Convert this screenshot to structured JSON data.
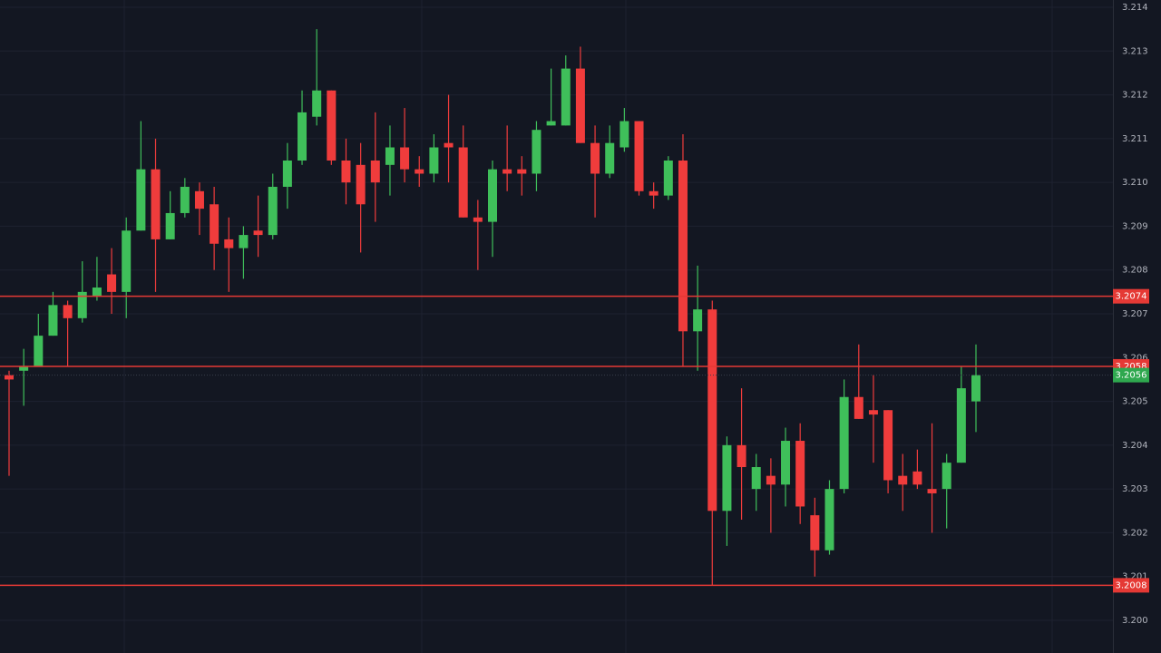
{
  "chart_data": {
    "type": "candlestick",
    "up_color": "#3fbf5a",
    "down_color": "#f03c3c",
    "ylim": [
      3.2,
      3.214
    ],
    "yticks": [
      3.214,
      3.213,
      3.212,
      3.211,
      {
        "value": 3.21,
        "label": "3.210"
      },
      3.209,
      3.208,
      3.207,
      3.206,
      3.205,
      3.204,
      3.203,
      3.202,
      3.201,
      {
        "value": 3.2,
        "label": "3.200"
      }
    ],
    "grid": true,
    "open": [
      3.2056,
      3.2057,
      3.2058,
      3.2065,
      3.2072,
      3.2069,
      3.2074,
      3.2079,
      3.2075,
      3.2089,
      3.2103,
      3.2087,
      3.2093,
      3.2098,
      3.2095,
      3.2087,
      3.2085,
      3.2089,
      3.2088,
      3.2099,
      3.2105,
      3.2115,
      3.2121,
      3.2105,
      3.2104,
      3.2105,
      3.2104,
      3.2108,
      3.2103,
      3.2102,
      3.2109,
      3.2108,
      3.2092,
      3.2091,
      3.2103,
      3.2103,
      3.2102,
      3.2113,
      3.2113,
      3.2126,
      3.2109,
      3.2102,
      3.2108,
      3.2114,
      3.2098,
      3.2097,
      3.2105,
      3.2066,
      3.2071,
      3.2025,
      3.204,
      3.203,
      3.2033,
      3.2031,
      3.2041,
      3.2024,
      3.2016,
      3.203,
      3.2051,
      3.2048,
      3.2048,
      3.2033,
      3.2034,
      3.203,
      3.203,
      3.2036,
      3.205
    ],
    "high": [
      3.2057,
      3.2062,
      3.207,
      3.2075,
      3.2073,
      3.2082,
      3.2083,
      3.2085,
      3.2092,
      3.2114,
      3.211,
      3.2098,
      3.2101,
      3.21,
      3.2099,
      3.2092,
      3.209,
      3.2097,
      3.2102,
      3.2109,
      3.2121,
      3.2135,
      3.2121,
      3.211,
      3.2109,
      3.2116,
      3.2113,
      3.2117,
      3.2106,
      3.2111,
      3.212,
      3.2113,
      3.2096,
      3.2105,
      3.2113,
      3.2106,
      3.2114,
      3.2126,
      3.2129,
      3.2131,
      3.2113,
      3.2113,
      3.2117,
      3.2114,
      3.21,
      3.2106,
      3.2111,
      3.2081,
      3.2073,
      3.2042,
      3.2053,
      3.2038,
      3.2037,
      3.2044,
      3.2045,
      3.2028,
      3.2032,
      3.2055,
      3.2063,
      3.2056,
      3.2048,
      3.2038,
      3.2039,
      3.2045,
      3.2038,
      3.2058,
      3.2063
    ],
    "low": [
      3.2033,
      3.2049,
      3.2058,
      3.2065,
      3.2058,
      3.2068,
      3.2073,
      3.207,
      3.2069,
      3.2089,
      3.2075,
      3.2087,
      3.2092,
      3.2088,
      3.208,
      3.2075,
      3.2078,
      3.2083,
      3.2087,
      3.2094,
      3.2104,
      3.2113,
      3.2104,
      3.2095,
      3.2084,
      3.2091,
      3.2097,
      3.21,
      3.2099,
      3.21,
      3.21,
      3.2092,
      3.208,
      3.2083,
      3.2098,
      3.2097,
      3.2098,
      3.2113,
      3.2113,
      3.2109,
      3.2092,
      3.2101,
      3.2107,
      3.2097,
      3.2094,
      3.2096,
      3.2058,
      3.2057,
      3.2008,
      3.2017,
      3.2023,
      3.2025,
      3.202,
      3.2026,
      3.2022,
      3.201,
      3.2015,
      3.2029,
      3.2046,
      3.2036,
      3.2029,
      3.2025,
      3.203,
      3.202,
      3.2021,
      3.2036,
      3.2043
    ],
    "close": [
      3.2055,
      3.2058,
      3.2065,
      3.2072,
      3.2069,
      3.2075,
      3.2076,
      3.2075,
      3.2089,
      3.2103,
      3.2087,
      3.2093,
      3.2099,
      3.2094,
      3.2086,
      3.2085,
      3.2088,
      3.2088,
      3.2099,
      3.2105,
      3.2116,
      3.2121,
      3.2105,
      3.21,
      3.2095,
      3.21,
      3.2108,
      3.2103,
      3.2102,
      3.2108,
      3.2108,
      3.2092,
      3.2091,
      3.2103,
      3.2102,
      3.2102,
      3.2112,
      3.2114,
      3.2126,
      3.2109,
      3.2102,
      3.2109,
      3.2114,
      3.2098,
      3.2097,
      3.2105,
      3.2066,
      3.2071,
      3.2025,
      3.204,
      3.2035,
      3.2035,
      3.2031,
      3.2041,
      3.2026,
      3.2016,
      3.203,
      3.2051,
      3.2046,
      3.2047,
      3.2032,
      3.2031,
      3.2031,
      3.2029,
      3.2036,
      3.2053,
      3.2056
    ],
    "levels": [
      {
        "value": 3.2074,
        "color": "#e53935"
      },
      {
        "value": 3.2058,
        "color": "#e53935"
      },
      {
        "value": 3.2008,
        "color": "#e53935"
      }
    ],
    "last_price": {
      "value": 3.2056,
      "color": "#2fa84f"
    }
  }
}
